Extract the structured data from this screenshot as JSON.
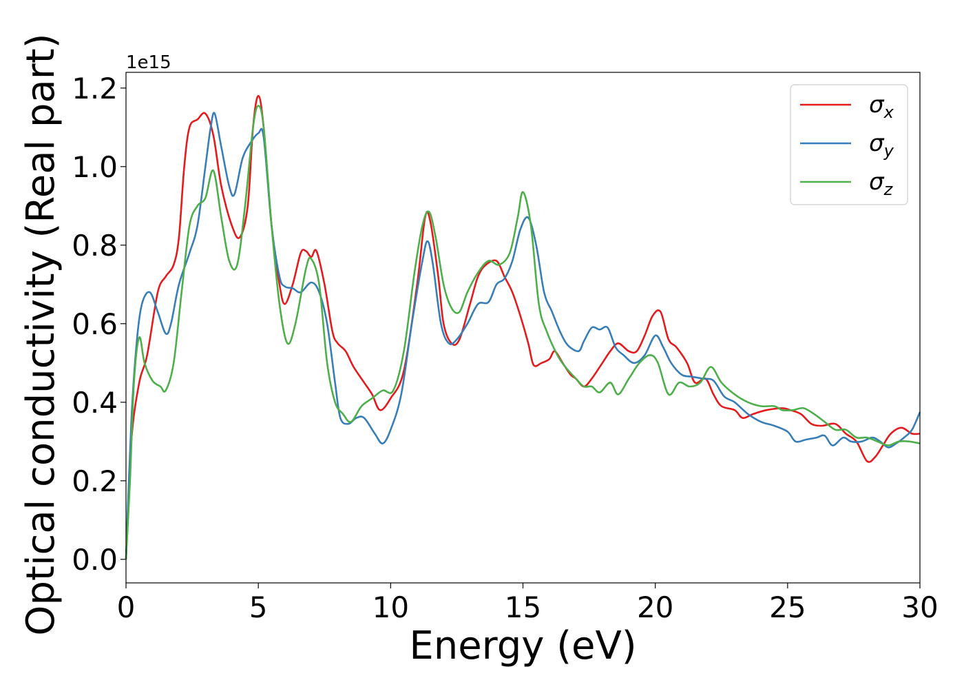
{
  "chart_data": {
    "type": "line",
    "xlabel": "Energy (eV)",
    "ylabel": "Optical conductivity (Real part)",
    "y_offset_label": "1e15",
    "xlim": [
      0,
      30
    ],
    "ylim": [
      -0.06,
      1.24
    ],
    "x_ticks": [
      0,
      5,
      10,
      15,
      20,
      25,
      30
    ],
    "x_tick_labels": [
      "0",
      "5",
      "10",
      "15",
      "20",
      "25",
      "30"
    ],
    "y_ticks": [
      0.0,
      0.2,
      0.4,
      0.6,
      0.8,
      1.0,
      1.2
    ],
    "y_tick_labels": [
      "0.0",
      "0.2",
      "0.4",
      "0.6",
      "0.8",
      "1.0",
      "1.2"
    ],
    "grid": false,
    "legend_position": "top-right",
    "series": [
      {
        "name": "σx",
        "symbol": "σ",
        "subscript": "x",
        "color": "#e41a1c",
        "points": [
          [
            0,
            0
          ],
          [
            0.2,
            0.3
          ],
          [
            0.5,
            0.45
          ],
          [
            0.8,
            0.52
          ],
          [
            1.2,
            0.68
          ],
          [
            1.5,
            0.72
          ],
          [
            1.8,
            0.75
          ],
          [
            2.0,
            0.82
          ],
          [
            2.2,
            1.0
          ],
          [
            2.4,
            1.1
          ],
          [
            2.7,
            1.12
          ],
          [
            3.0,
            1.135
          ],
          [
            3.3,
            1.08
          ],
          [
            3.6,
            0.95
          ],
          [
            4.0,
            0.85
          ],
          [
            4.3,
            0.82
          ],
          [
            4.6,
            0.9
          ],
          [
            4.8,
            1.1
          ],
          [
            5.0,
            1.18
          ],
          [
            5.2,
            1.1
          ],
          [
            5.5,
            0.85
          ],
          [
            5.8,
            0.7
          ],
          [
            6.0,
            0.65
          ],
          [
            6.3,
            0.7
          ],
          [
            6.6,
            0.78
          ],
          [
            6.8,
            0.785
          ],
          [
            7.0,
            0.77
          ],
          [
            7.2,
            0.785
          ],
          [
            7.5,
            0.7
          ],
          [
            7.8,
            0.58
          ],
          [
            8.0,
            0.55
          ],
          [
            8.3,
            0.53
          ],
          [
            8.6,
            0.49
          ],
          [
            9.0,
            0.45
          ],
          [
            9.3,
            0.42
          ],
          [
            9.6,
            0.38
          ],
          [
            10.0,
            0.41
          ],
          [
            10.5,
            0.48
          ],
          [
            11.0,
            0.7
          ],
          [
            11.3,
            0.87
          ],
          [
            11.5,
            0.86
          ],
          [
            11.8,
            0.72
          ],
          [
            12.0,
            0.6
          ],
          [
            12.3,
            0.55
          ],
          [
            12.6,
            0.56
          ],
          [
            13.0,
            0.65
          ],
          [
            13.3,
            0.72
          ],
          [
            13.6,
            0.75
          ],
          [
            14.0,
            0.76
          ],
          [
            14.3,
            0.72
          ],
          [
            14.6,
            0.68
          ],
          [
            14.9,
            0.62
          ],
          [
            15.2,
            0.55
          ],
          [
            15.4,
            0.495
          ],
          [
            15.7,
            0.5
          ],
          [
            16.0,
            0.51
          ],
          [
            16.2,
            0.53
          ],
          [
            16.5,
            0.5
          ],
          [
            16.8,
            0.47
          ],
          [
            17.0,
            0.46
          ],
          [
            17.3,
            0.44
          ],
          [
            17.6,
            0.46
          ],
          [
            18.0,
            0.5
          ],
          [
            18.3,
            0.53
          ],
          [
            18.6,
            0.55
          ],
          [
            19.0,
            0.53
          ],
          [
            19.3,
            0.53
          ],
          [
            19.6,
            0.57
          ],
          [
            19.9,
            0.62
          ],
          [
            20.2,
            0.63
          ],
          [
            20.5,
            0.56
          ],
          [
            20.8,
            0.54
          ],
          [
            21.2,
            0.5
          ],
          [
            21.5,
            0.45
          ],
          [
            21.9,
            0.46
          ],
          [
            22.2,
            0.42
          ],
          [
            22.5,
            0.39
          ],
          [
            23.0,
            0.38
          ],
          [
            23.3,
            0.36
          ],
          [
            23.7,
            0.37
          ],
          [
            24.2,
            0.38
          ],
          [
            24.8,
            0.385
          ],
          [
            25.1,
            0.38
          ],
          [
            25.5,
            0.37
          ],
          [
            25.9,
            0.345
          ],
          [
            26.3,
            0.34
          ],
          [
            26.8,
            0.345
          ],
          [
            27.2,
            0.32
          ],
          [
            27.6,
            0.3
          ],
          [
            28.0,
            0.25
          ],
          [
            28.3,
            0.26
          ],
          [
            28.6,
            0.29
          ],
          [
            28.9,
            0.32
          ],
          [
            29.3,
            0.335
          ],
          [
            29.7,
            0.32
          ],
          [
            30.0,
            0.32
          ]
        ]
      },
      {
        "name": "σy",
        "symbol": "σ",
        "subscript": "y",
        "color": "#377eb8",
        "points": [
          [
            0,
            0
          ],
          [
            0.2,
            0.35
          ],
          [
            0.4,
            0.55
          ],
          [
            0.6,
            0.65
          ],
          [
            0.9,
            0.68
          ],
          [
            1.2,
            0.63
          ],
          [
            1.5,
            0.575
          ],
          [
            1.7,
            0.6
          ],
          [
            2.0,
            0.7
          ],
          [
            2.4,
            0.78
          ],
          [
            2.7,
            0.85
          ],
          [
            3.0,
            1.0
          ],
          [
            3.2,
            1.1
          ],
          [
            3.35,
            1.135
          ],
          [
            3.6,
            1.05
          ],
          [
            3.9,
            0.95
          ],
          [
            4.1,
            0.93
          ],
          [
            4.4,
            1.02
          ],
          [
            4.7,
            1.06
          ],
          [
            5.0,
            1.085
          ],
          [
            5.2,
            1.075
          ],
          [
            5.5,
            0.85
          ],
          [
            5.8,
            0.72
          ],
          [
            6.0,
            0.695
          ],
          [
            6.3,
            0.69
          ],
          [
            6.6,
            0.68
          ],
          [
            7.0,
            0.705
          ],
          [
            7.3,
            0.68
          ],
          [
            7.6,
            0.6
          ],
          [
            7.9,
            0.45
          ],
          [
            8.1,
            0.36
          ],
          [
            8.4,
            0.345
          ],
          [
            8.7,
            0.36
          ],
          [
            9.0,
            0.36
          ],
          [
            9.4,
            0.32
          ],
          [
            9.7,
            0.295
          ],
          [
            10.0,
            0.33
          ],
          [
            10.4,
            0.42
          ],
          [
            10.8,
            0.6
          ],
          [
            11.2,
            0.76
          ],
          [
            11.4,
            0.81
          ],
          [
            11.6,
            0.75
          ],
          [
            11.9,
            0.6
          ],
          [
            12.2,
            0.55
          ],
          [
            12.5,
            0.56
          ],
          [
            12.9,
            0.6
          ],
          [
            13.3,
            0.65
          ],
          [
            13.7,
            0.655
          ],
          [
            14.0,
            0.7
          ],
          [
            14.3,
            0.715
          ],
          [
            14.6,
            0.76
          ],
          [
            14.9,
            0.84
          ],
          [
            15.2,
            0.87
          ],
          [
            15.5,
            0.8
          ],
          [
            15.8,
            0.68
          ],
          [
            16.1,
            0.63
          ],
          [
            16.4,
            0.58
          ],
          [
            16.7,
            0.545
          ],
          [
            17.1,
            0.53
          ],
          [
            17.3,
            0.555
          ],
          [
            17.6,
            0.59
          ],
          [
            17.9,
            0.585
          ],
          [
            18.2,
            0.59
          ],
          [
            18.5,
            0.54
          ],
          [
            18.8,
            0.52
          ],
          [
            19.2,
            0.5
          ],
          [
            19.6,
            0.52
          ],
          [
            20.0,
            0.57
          ],
          [
            20.3,
            0.54
          ],
          [
            20.6,
            0.5
          ],
          [
            21.0,
            0.47
          ],
          [
            21.4,
            0.465
          ],
          [
            21.8,
            0.46
          ],
          [
            22.2,
            0.455
          ],
          [
            22.6,
            0.415
          ],
          [
            23.0,
            0.4
          ],
          [
            23.5,
            0.37
          ],
          [
            24.0,
            0.35
          ],
          [
            24.5,
            0.34
          ],
          [
            25.0,
            0.325
          ],
          [
            25.3,
            0.3
          ],
          [
            25.7,
            0.305
          ],
          [
            26.1,
            0.31
          ],
          [
            26.4,
            0.315
          ],
          [
            26.7,
            0.29
          ],
          [
            27.1,
            0.31
          ],
          [
            27.4,
            0.3
          ],
          [
            27.8,
            0.3
          ],
          [
            28.2,
            0.31
          ],
          [
            28.5,
            0.3
          ],
          [
            28.8,
            0.285
          ],
          [
            29.1,
            0.295
          ],
          [
            29.4,
            0.31
          ],
          [
            29.7,
            0.33
          ],
          [
            30.0,
            0.375
          ]
        ]
      },
      {
        "name": "σz",
        "symbol": "σ",
        "subscript": "z",
        "color": "#4daf4a",
        "points": [
          [
            0,
            0
          ],
          [
            0.15,
            0.2
          ],
          [
            0.3,
            0.45
          ],
          [
            0.5,
            0.565
          ],
          [
            0.7,
            0.5
          ],
          [
            1.0,
            0.455
          ],
          [
            1.3,
            0.44
          ],
          [
            1.5,
            0.43
          ],
          [
            1.8,
            0.5
          ],
          [
            2.1,
            0.68
          ],
          [
            2.4,
            0.85
          ],
          [
            2.7,
            0.9
          ],
          [
            3.0,
            0.92
          ],
          [
            3.3,
            0.99
          ],
          [
            3.6,
            0.87
          ],
          [
            3.9,
            0.76
          ],
          [
            4.2,
            0.75
          ],
          [
            4.5,
            0.9
          ],
          [
            4.8,
            1.1
          ],
          [
            5.0,
            1.155
          ],
          [
            5.2,
            1.1
          ],
          [
            5.5,
            0.85
          ],
          [
            5.8,
            0.65
          ],
          [
            6.1,
            0.55
          ],
          [
            6.4,
            0.6
          ],
          [
            6.8,
            0.74
          ],
          [
            7.0,
            0.765
          ],
          [
            7.3,
            0.7
          ],
          [
            7.6,
            0.5
          ],
          [
            7.9,
            0.4
          ],
          [
            8.2,
            0.37
          ],
          [
            8.5,
            0.35
          ],
          [
            8.9,
            0.39
          ],
          [
            9.3,
            0.41
          ],
          [
            9.7,
            0.43
          ],
          [
            10.1,
            0.43
          ],
          [
            10.5,
            0.53
          ],
          [
            10.9,
            0.73
          ],
          [
            11.2,
            0.85
          ],
          [
            11.45,
            0.885
          ],
          [
            11.7,
            0.82
          ],
          [
            12.0,
            0.7
          ],
          [
            12.3,
            0.64
          ],
          [
            12.6,
            0.63
          ],
          [
            12.9,
            0.68
          ],
          [
            13.3,
            0.73
          ],
          [
            13.7,
            0.76
          ],
          [
            14.1,
            0.75
          ],
          [
            14.5,
            0.78
          ],
          [
            14.8,
            0.87
          ],
          [
            15.0,
            0.935
          ],
          [
            15.3,
            0.85
          ],
          [
            15.6,
            0.65
          ],
          [
            15.9,
            0.58
          ],
          [
            16.3,
            0.52
          ],
          [
            16.6,
            0.49
          ],
          [
            17.0,
            0.46
          ],
          [
            17.3,
            0.44
          ],
          [
            17.6,
            0.44
          ],
          [
            17.9,
            0.425
          ],
          [
            18.3,
            0.45
          ],
          [
            18.6,
            0.42
          ],
          [
            19.0,
            0.46
          ],
          [
            19.4,
            0.5
          ],
          [
            19.8,
            0.52
          ],
          [
            20.1,
            0.5
          ],
          [
            20.5,
            0.42
          ],
          [
            20.9,
            0.45
          ],
          [
            21.3,
            0.44
          ],
          [
            21.7,
            0.45
          ],
          [
            22.1,
            0.49
          ],
          [
            22.5,
            0.45
          ],
          [
            23.0,
            0.42
          ],
          [
            23.5,
            0.4
          ],
          [
            24.0,
            0.39
          ],
          [
            24.5,
            0.39
          ],
          [
            24.8,
            0.38
          ],
          [
            25.2,
            0.38
          ],
          [
            25.6,
            0.385
          ],
          [
            26.0,
            0.37
          ],
          [
            26.4,
            0.35
          ],
          [
            26.8,
            0.33
          ],
          [
            27.2,
            0.33
          ],
          [
            27.6,
            0.31
          ],
          [
            28.0,
            0.31
          ],
          [
            28.4,
            0.3
          ],
          [
            28.8,
            0.29
          ],
          [
            29.2,
            0.3
          ],
          [
            29.6,
            0.3
          ],
          [
            30.0,
            0.295
          ]
        ]
      }
    ]
  }
}
